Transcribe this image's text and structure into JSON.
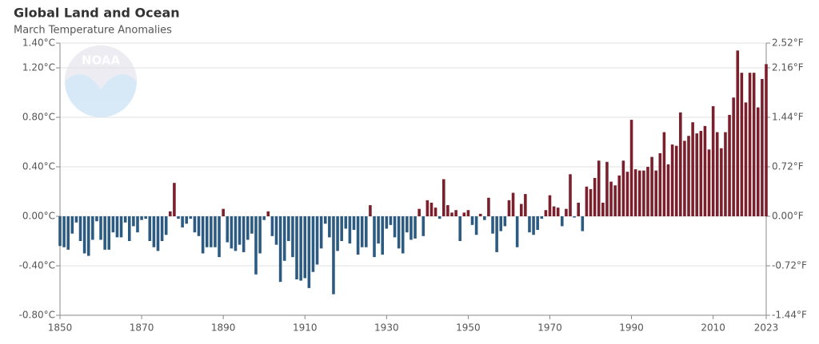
{
  "chart_data": {
    "type": "bar",
    "title": "Global Land and Ocean",
    "subtitle": "March Temperature Anomalies",
    "logo": "NOAA",
    "x": [
      1850,
      1851,
      1852,
      1853,
      1854,
      1855,
      1856,
      1857,
      1858,
      1859,
      1860,
      1861,
      1862,
      1863,
      1864,
      1865,
      1866,
      1867,
      1868,
      1869,
      1870,
      1871,
      1872,
      1873,
      1874,
      1875,
      1876,
      1877,
      1878,
      1879,
      1880,
      1881,
      1882,
      1883,
      1884,
      1885,
      1886,
      1887,
      1888,
      1889,
      1890,
      1891,
      1892,
      1893,
      1894,
      1895,
      1896,
      1897,
      1898,
      1899,
      1900,
      1901,
      1902,
      1903,
      1904,
      1905,
      1906,
      1907,
      1908,
      1909,
      1910,
      1911,
      1912,
      1913,
      1914,
      1915,
      1916,
      1917,
      1918,
      1919,
      1920,
      1921,
      1922,
      1923,
      1924,
      1925,
      1926,
      1927,
      1928,
      1929,
      1930,
      1931,
      1932,
      1933,
      1934,
      1935,
      1936,
      1937,
      1938,
      1939,
      1940,
      1941,
      1942,
      1943,
      1944,
      1945,
      1946,
      1947,
      1948,
      1949,
      1950,
      1951,
      1952,
      1953,
      1954,
      1955,
      1956,
      1957,
      1958,
      1959,
      1960,
      1961,
      1962,
      1963,
      1964,
      1965,
      1966,
      1967,
      1968,
      1969,
      1970,
      1971,
      1972,
      1973,
      1974,
      1975,
      1976,
      1977,
      1978,
      1979,
      1980,
      1981,
      1982,
      1983,
      1984,
      1985,
      1986,
      1987,
      1988,
      1989,
      1990,
      1991,
      1992,
      1993,
      1994,
      1995,
      1996,
      1997,
      1998,
      1999,
      2000,
      2001,
      2002,
      2003,
      2004,
      2005,
      2006,
      2007,
      2008,
      2009,
      2010,
      2011,
      2012,
      2013,
      2014,
      2015,
      2016,
      2017,
      2018,
      2019,
      2020,
      2021,
      2022,
      2023
    ],
    "values": [
      -0.24,
      -0.25,
      -0.27,
      -0.14,
      -0.05,
      -0.2,
      -0.3,
      -0.32,
      -0.19,
      -0.04,
      -0.19,
      -0.27,
      -0.27,
      -0.13,
      -0.17,
      -0.17,
      -0.05,
      -0.2,
      -0.08,
      -0.13,
      -0.03,
      -0.02,
      -0.2,
      -0.25,
      -0.28,
      -0.2,
      -0.15,
      0.04,
      0.27,
      -0.02,
      -0.09,
      -0.06,
      -0.02,
      -0.13,
      -0.16,
      -0.3,
      -0.25,
      -0.25,
      -0.25,
      -0.33,
      0.06,
      -0.21,
      -0.26,
      -0.28,
      -0.23,
      -0.29,
      -0.19,
      -0.14,
      -0.47,
      -0.3,
      -0.03,
      0.04,
      -0.16,
      -0.23,
      -0.53,
      -0.36,
      -0.2,
      -0.33,
      -0.51,
      -0.52,
      -0.5,
      -0.58,
      -0.45,
      -0.39,
      -0.26,
      -0.06,
      -0.17,
      -0.63,
      -0.28,
      -0.2,
      -0.1,
      -0.22,
      -0.11,
      -0.31,
      -0.25,
      -0.25,
      0.09,
      -0.33,
      -0.22,
      -0.31,
      -0.1,
      -0.07,
      -0.17,
      -0.26,
      -0.3,
      -0.13,
      -0.19,
      -0.18,
      0.06,
      -0.16,
      0.13,
      0.11,
      0.07,
      -0.02,
      0.3,
      0.09,
      0.03,
      0.05,
      -0.2,
      0.03,
      0.05,
      -0.07,
      -0.15,
      0.02,
      -0.03,
      0.15,
      -0.14,
      -0.29,
      -0.12,
      -0.08,
      0.13,
      0.19,
      -0.25,
      0.1,
      0.18,
      -0.13,
      -0.15,
      -0.11,
      -0.02,
      0.05,
      0.17,
      0.08,
      0.07,
      -0.08,
      0.06,
      0.34,
      -0.01,
      0.11,
      -0.12,
      0.24,
      0.22,
      0.31,
      0.45,
      0.11,
      0.44,
      0.28,
      0.25,
      0.33,
      0.45,
      0.36,
      0.78,
      0.38,
      0.37,
      0.37,
      0.4,
      0.48,
      0.37,
      0.51,
      0.68,
      0.42,
      0.58,
      0.57,
      0.84,
      0.61,
      0.65,
      0.76,
      0.67,
      0.69,
      0.73,
      0.54,
      0.89,
      0.68,
      0.55,
      0.68,
      0.82,
      0.96,
      1.34,
      1.16,
      0.92,
      1.16,
      1.16,
      0.88,
      1.11,
      1.23
    ],
    "color_positive": "#7a1f2b",
    "color_negative": "#2d5a80",
    "xlim": [
      1850,
      2023
    ],
    "xticks": [
      1850,
      1870,
      1890,
      1910,
      1930,
      1950,
      1970,
      1990,
      2010,
      2023
    ],
    "ylim": [
      -0.8,
      1.4
    ],
    "yticks": [
      {
        "value": 1.4,
        "label": "1.40°C"
      },
      {
        "value": 1.2,
        "label": "1.20°C"
      },
      {
        "value": 0.8,
        "label": "0.80°C"
      },
      {
        "value": 0.4,
        "label": "0.40°C"
      },
      {
        "value": 0,
        "label": "0.00°C"
      },
      {
        "value": -0.4,
        "label": "-0.40°C"
      },
      {
        "value": -0.8,
        "label": "-0.80°C"
      }
    ],
    "y2lim": [
      -1.44,
      2.52
    ],
    "y2ticks": [
      {
        "value": 2.52,
        "label": "2.52°F"
      },
      {
        "value": 2.16,
        "label": "2.16°F"
      },
      {
        "value": 1.44,
        "label": "1.44°F"
      },
      {
        "value": 0.72,
        "label": "0.72°F"
      },
      {
        "value": 0,
        "label": "0.00°F"
      },
      {
        "value": -0.72,
        "label": "-0.72°F"
      },
      {
        "value": -1.44,
        "label": "-1.44°F"
      }
    ],
    "grid": true
  }
}
